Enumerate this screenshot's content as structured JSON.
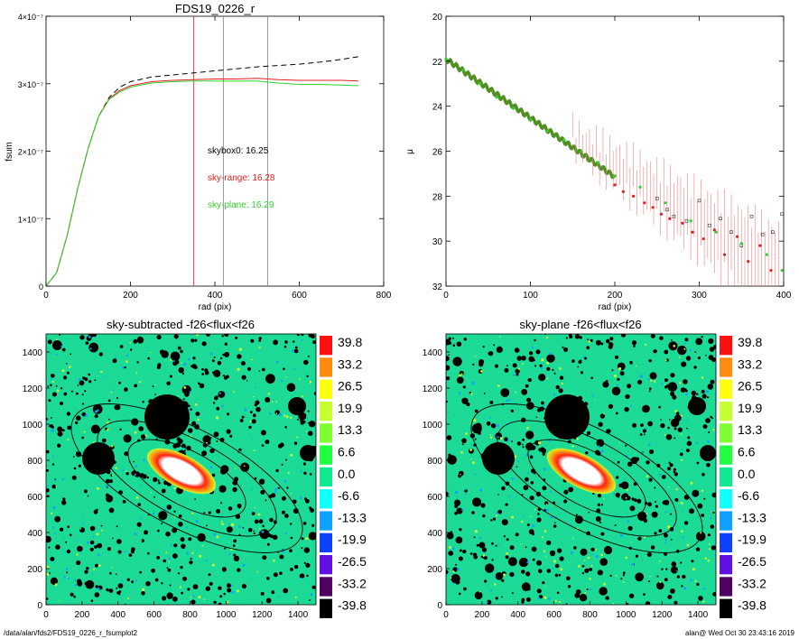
{
  "charts": {
    "fsum": {
      "title": "FDS19_0226_r",
      "xlabel": "rad (pix)",
      "ylabel": "fsum",
      "xticks": [
        "0",
        "200",
        "400",
        "600",
        "800"
      ],
      "yticks": [
        "0",
        "1×10⁻⁷",
        "2×10⁻⁷",
        "3×10⁻⁷",
        "4×10⁻⁷"
      ],
      "annotations": [
        {
          "text": "skybox0: 16.25",
          "color": "#000000"
        },
        {
          "text": "sky-range: 16.28",
          "color": "#e02020"
        },
        {
          "text": "sky-plane: 16.29",
          "color": "#30d030"
        }
      ]
    },
    "mu": {
      "title": "",
      "xlabel": "rad (pix)",
      "ylabel": "μ",
      "xticks": [
        "0",
        "100",
        "200",
        "300",
        "400"
      ],
      "yticks": [
        "20",
        "22",
        "24",
        "26",
        "28",
        "30",
        "32"
      ]
    },
    "img1": {
      "title": "sky-subtracted -f26<flux<f26",
      "xticks": [
        "0",
        "200",
        "400",
        "600",
        "800",
        "1000",
        "1200",
        "1400"
      ],
      "yticks": [
        "0",
        "200",
        "400",
        "600",
        "800",
        "1000",
        "1200",
        "1400"
      ]
    },
    "img2": {
      "title": "sky-plane -f26<flux<f26",
      "xticks": [
        "0",
        "200",
        "400",
        "600",
        "800",
        "1000",
        "1200",
        "1400"
      ],
      "yticks": [
        "0",
        "200",
        "400",
        "600",
        "800",
        "1000",
        "1200",
        "1400"
      ]
    },
    "colorbar": {
      "labels": [
        "39.8",
        "33.2",
        "26.5",
        "19.9",
        "13.3",
        "6.6",
        "0.0",
        "-6.6",
        "-13.3",
        "-19.9",
        "-26.5",
        "-33.2",
        "-39.8"
      ],
      "colors": [
        "#ff1010",
        "#ff8a10",
        "#ffff10",
        "#c8ff30",
        "#80ff30",
        "#20ff40",
        "#10e890",
        "#10ffff",
        "#10a0ff",
        "#1040ff",
        "#6010e0",
        "#500060",
        "#000000"
      ]
    }
  },
  "chart_data": [
    {
      "type": "line",
      "title": "FDS19_0226_r",
      "xlabel": "rad (pix)",
      "ylabel": "fsum",
      "xlim": [
        0,
        800
      ],
      "ylim": [
        0,
        4e-07
      ],
      "series": [
        {
          "style": "dashed",
          "color": "#000000",
          "x": [
            0,
            25,
            50,
            75,
            100,
            125,
            150,
            175,
            200,
            250,
            300,
            350,
            400,
            450,
            500,
            550,
            600,
            650,
            700,
            740
          ],
          "y": [
            0,
            2e-08,
            7.5e-08,
            1.45e-07,
            2.05e-07,
            2.52e-07,
            2.8e-07,
            2.95e-07,
            3.03e-07,
            3.1e-07,
            3.13e-07,
            3.16e-07,
            3.19e-07,
            3.22e-07,
            3.25e-07,
            3.27e-07,
            3.29e-07,
            3.32e-07,
            3.36e-07,
            3.4e-07
          ]
        },
        {
          "color": "#e02020",
          "x": [
            0,
            25,
            50,
            75,
            100,
            125,
            150,
            175,
            200,
            250,
            300,
            350,
            400,
            450,
            500,
            550,
            600,
            650,
            700,
            740
          ],
          "y": [
            0,
            2e-08,
            7.5e-08,
            1.45e-07,
            2.05e-07,
            2.52e-07,
            2.78e-07,
            2.9e-07,
            2.97e-07,
            3.03e-07,
            3.05e-07,
            3.06e-07,
            3.07e-07,
            3.07e-07,
            3.08e-07,
            3.06e-07,
            3.05e-07,
            3.05e-07,
            3.05e-07,
            3.04e-07
          ]
        },
        {
          "color": "#30d030",
          "x": [
            0,
            25,
            50,
            75,
            100,
            125,
            150,
            175,
            200,
            250,
            300,
            350,
            400,
            450,
            500,
            550,
            600,
            650,
            700,
            740
          ],
          "y": [
            0,
            2e-08,
            7.5e-08,
            1.45e-07,
            2.05e-07,
            2.52e-07,
            2.77e-07,
            2.88e-07,
            2.95e-07,
            3.01e-07,
            3.03e-07,
            3.04e-07,
            3.04e-07,
            3.04e-07,
            3.04e-07,
            3.01e-07,
            2.99e-07,
            2.99e-07,
            2.98e-07,
            2.97e-07
          ]
        }
      ],
      "vlines": [
        {
          "x": 350,
          "color": "#e02020"
        },
        {
          "x": 420,
          "color": "#808080"
        },
        {
          "x": 525,
          "color": "#808080"
        }
      ]
    },
    {
      "type": "scatter",
      "xlabel": "rad (pix)",
      "ylabel": "μ",
      "xlim": [
        0,
        400
      ],
      "ylim": [
        32,
        20
      ],
      "series": [
        {
          "color": "#303030",
          "x": [
            250,
            262,
            270,
            285,
            300,
            312,
            325,
            338,
            350,
            362,
            375,
            387,
            398
          ],
          "y": [
            28.1,
            28.6,
            28.9,
            29.1,
            28.2,
            29.3,
            29.0,
            29.6,
            30.2,
            28.9,
            29.7,
            29.6,
            28.8
          ]
        },
        {
          "color": "#e02020",
          "x": [
            200,
            210,
            222,
            235,
            245,
            255,
            265,
            280,
            292,
            305,
            318,
            330,
            345,
            358,
            372,
            385
          ],
          "y": [
            27.5,
            27.8,
            28.0,
            28.3,
            28.5,
            28.8,
            29.0,
            29.2,
            29.6,
            29.9,
            29.5,
            30.6,
            29.8,
            30.9,
            30.2,
            31.3
          ]
        },
        {
          "color": "#30d030",
          "x": [
            0,
            20,
            40,
            60,
            80,
            100,
            120,
            140,
            160,
            180,
            200,
            230,
            260,
            290,
            320,
            350,
            380,
            398
          ],
          "y": [
            21.9,
            22.4,
            23.0,
            23.6,
            24.1,
            24.6,
            25.1,
            25.5,
            26.0,
            26.5,
            27.1,
            27.6,
            28.3,
            29.1,
            29.6,
            30.1,
            30.6,
            31.3
          ]
        }
      ]
    }
  ],
  "footer": {
    "path": "/data/alan/fds2/FDS19_0226_r_fsumplot2",
    "stamp": "alan@  Wed Oct 30 23:43:16 2019"
  }
}
